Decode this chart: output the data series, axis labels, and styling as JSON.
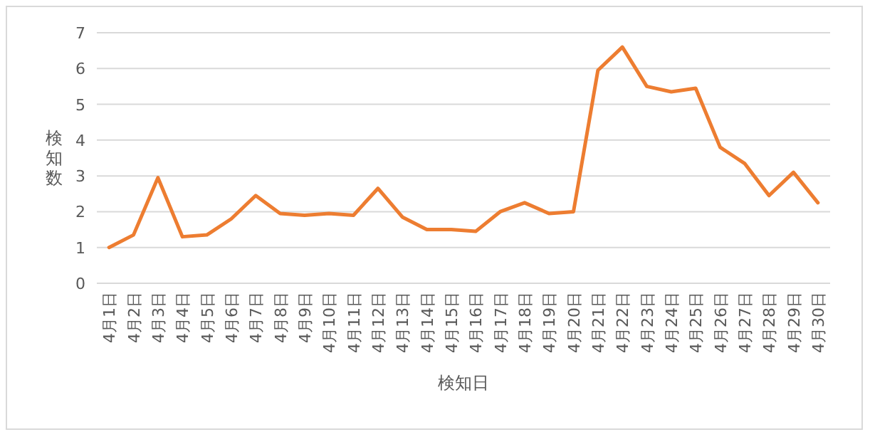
{
  "chart_data": {
    "type": "line",
    "xlabel": "検知日",
    "ylabel": "検知数",
    "categories": [
      "4月1日",
      "4月2日",
      "4月3日",
      "4月4日",
      "4月5日",
      "4月6日",
      "4月7日",
      "4月8日",
      "4月9日",
      "4月10日",
      "4月11日",
      "4月12日",
      "4月13日",
      "4月14日",
      "4月15日",
      "4月16日",
      "4月17日",
      "4月18日",
      "4月19日",
      "4月20日",
      "4月21日",
      "4月22日",
      "4月23日",
      "4月24日",
      "4月25日",
      "4月26日",
      "4月27日",
      "4月28日",
      "4月29日",
      "4月30日"
    ],
    "series": [
      {
        "color": "#ed7d31",
        "values": [
          1.0,
          1.35,
          2.95,
          1.3,
          1.35,
          1.8,
          2.45,
          1.95,
          1.9,
          1.95,
          1.9,
          2.65,
          1.85,
          1.5,
          1.5,
          1.45,
          2.0,
          2.25,
          1.95,
          2.0,
          5.95,
          6.6,
          5.5,
          5.35,
          5.45,
          3.8,
          3.35,
          2.45,
          3.1,
          2.25
        ]
      }
    ],
    "ylim": [
      0,
      7
    ],
    "yticks": [
      0,
      1,
      2,
      3,
      4,
      5,
      6,
      7
    ],
    "grid": "y",
    "marker": "none",
    "line_style": "solid"
  }
}
